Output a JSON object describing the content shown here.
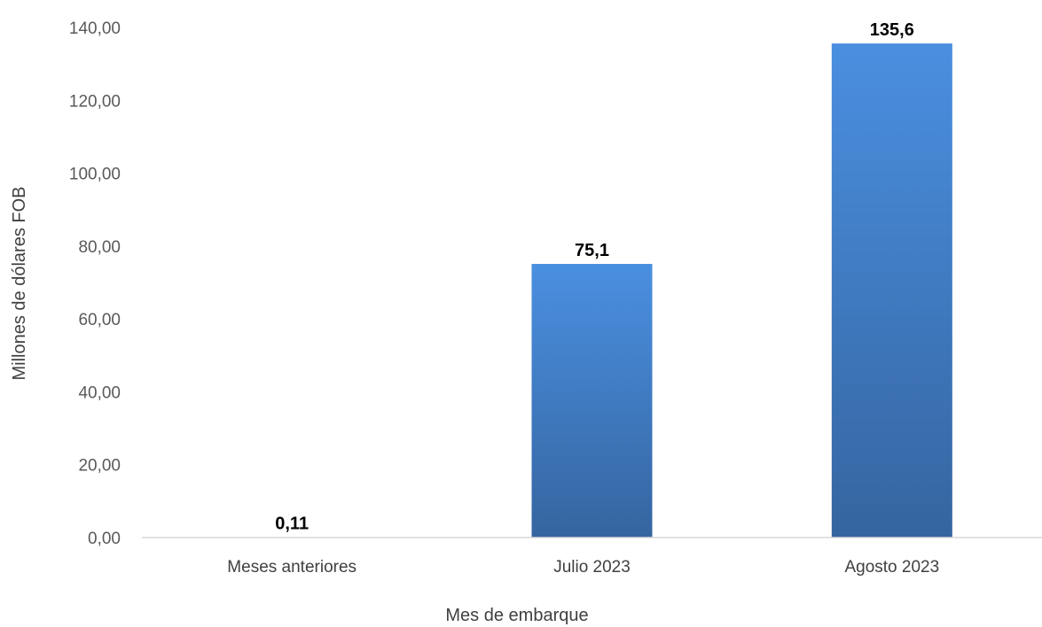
{
  "chart_data": {
    "type": "bar",
    "title": "",
    "xlabel": "Mes de embarque",
    "ylabel": "Millones de dólares FOB",
    "categories": [
      "Meses anteriores",
      "Julio 2023",
      "Agosto 2023"
    ],
    "values": [
      0.11,
      75.1,
      135.6
    ],
    "data_labels": [
      "0,11",
      "75,1",
      "135,6"
    ],
    "ylim": [
      0,
      140
    ],
    "yticks": [
      0,
      20,
      40,
      60,
      80,
      100,
      120,
      140
    ],
    "ytick_labels": [
      "0,00",
      "20,00",
      "40,00",
      "60,00",
      "80,00",
      "100,00",
      "120,00",
      "140,00"
    ],
    "grid": false,
    "legend": "none",
    "bar_color_top": "#4A8FE0",
    "bar_color_bottom": "#3565A0",
    "axis_color": "#D9D9D9"
  }
}
